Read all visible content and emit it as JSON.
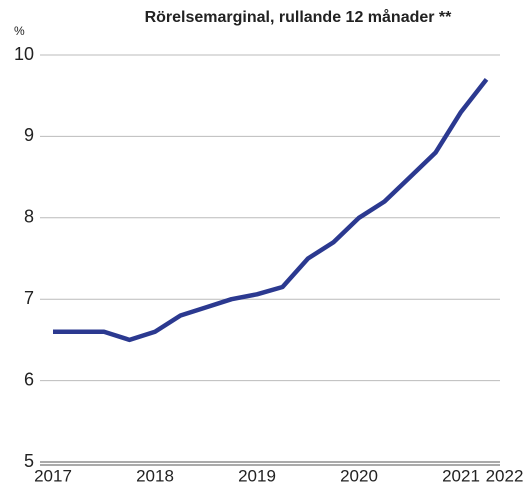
{
  "chart_data": {
    "type": "line",
    "title": "Rörelsemarginal, rullande 12 månader **",
    "y_label": "%",
    "categories": [
      "2017",
      null,
      null,
      null,
      "2018",
      null,
      null,
      null,
      "2019",
      null,
      null,
      null,
      "2020",
      null,
      null,
      null,
      "2021",
      "2022"
    ],
    "series": [
      {
        "name": "Rörelsemarginal",
        "color": "#2b3990",
        "values": [
          6.6,
          6.6,
          6.6,
          6.5,
          6.6,
          6.8,
          6.9,
          7.0,
          7.06,
          7.15,
          7.5,
          7.7,
          8.0,
          8.2,
          8.5,
          8.8,
          9.3,
          9.7
        ]
      }
    ],
    "ylim": [
      5,
      10
    ],
    "yticks": [
      5,
      6,
      7,
      8,
      9,
      10
    ],
    "grid": true
  }
}
